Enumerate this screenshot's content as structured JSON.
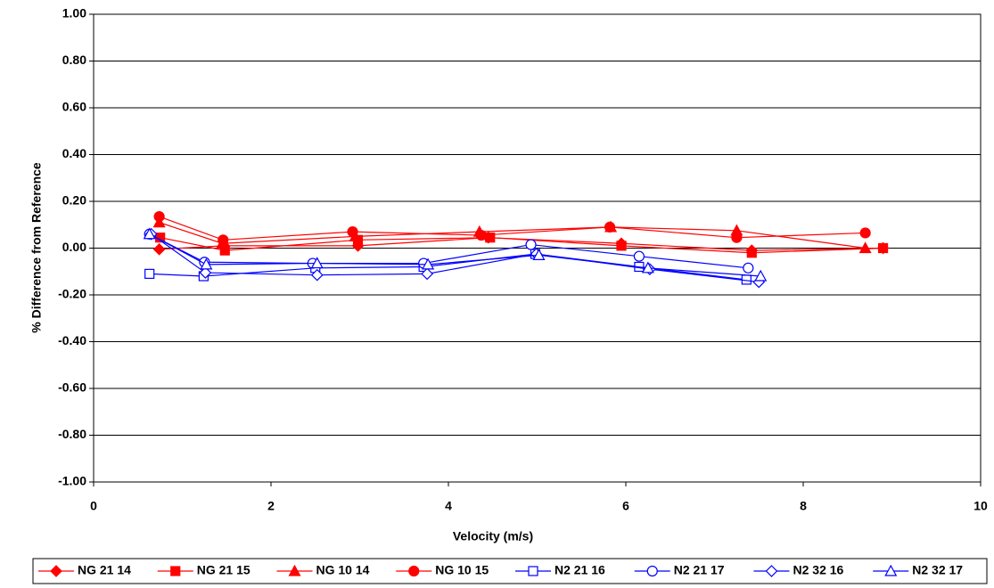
{
  "chart_data": {
    "type": "line",
    "xlabel": "Velocity (m/s)",
    "ylabel": "% Difference from Reference",
    "xlim": [
      0,
      10
    ],
    "xticks": [
      0,
      2,
      4,
      6,
      8,
      10
    ],
    "ylim": [
      -1,
      1
    ],
    "yticks": [
      {
        "value": -1,
        "label": "-1.00"
      },
      {
        "value": -0.8,
        "label": "-0.80"
      },
      {
        "value": -0.6,
        "label": "-0.60"
      },
      {
        "value": -0.4,
        "label": "-0.40"
      },
      {
        "value": -0.2,
        "label": "-0.20"
      },
      {
        "value": 0,
        "label": "0.00"
      },
      {
        "value": 0.2,
        "label": "0.20"
      },
      {
        "value": 0.4,
        "label": "0.40"
      },
      {
        "value": 0.6,
        "label": "0.60"
      },
      {
        "value": 0.8,
        "label": "0.80"
      },
      {
        "value": 1,
        "label": "1.00"
      }
    ],
    "grid": true,
    "legend": "bottom",
    "series": [
      {
        "name": "NG 21 14",
        "color": "#ff0000",
        "marker": "diamond",
        "filled": true,
        "x": [
          0.74,
          1.47,
          2.98,
          4.45,
          5.95,
          7.42,
          8.9
        ],
        "values": [
          -0.005,
          0.01,
          0.01,
          0.045,
          0.02,
          -0.01,
          0.0
        ]
      },
      {
        "name": "NG 21 15",
        "color": "#ff0000",
        "marker": "square",
        "filled": true,
        "x": [
          0.75,
          1.48,
          2.98,
          4.47,
          5.95,
          7.42,
          8.9
        ],
        "values": [
          0.045,
          -0.01,
          0.035,
          0.045,
          0.01,
          -0.02,
          0.0
        ]
      },
      {
        "name": "NG 10 14",
        "color": "#ff0000",
        "marker": "triangle",
        "filled": true,
        "x": [
          0.74,
          1.45,
          2.95,
          4.35,
          5.83,
          7.25,
          8.7
        ],
        "values": [
          0.11,
          0.02,
          0.05,
          0.07,
          0.09,
          0.075,
          0.0
        ]
      },
      {
        "name": "NG 10 15",
        "color": "#ff0000",
        "marker": "circle",
        "filled": true,
        "x": [
          0.74,
          1.46,
          2.92,
          4.37,
          5.82,
          7.25,
          8.7
        ],
        "values": [
          0.135,
          0.035,
          0.07,
          0.055,
          0.09,
          0.045,
          0.065
        ]
      },
      {
        "name": "N2 21 16",
        "color": "#0000ff",
        "marker": "square",
        "filled": false,
        "x": [
          0.63,
          1.24,
          2.5,
          3.72,
          4.98,
          6.15,
          7.36
        ],
        "values": [
          -0.11,
          -0.12,
          -0.085,
          -0.08,
          -0.025,
          -0.08,
          -0.135
        ]
      },
      {
        "name": "N2 21 17",
        "color": "#0000ff",
        "marker": "circle",
        "filled": false,
        "x": [
          0.63,
          1.25,
          2.47,
          3.72,
          4.93,
          6.15,
          7.38
        ],
        "values": [
          0.06,
          -0.06,
          -0.065,
          -0.065,
          0.015,
          -0.035,
          -0.085
        ]
      },
      {
        "name": "N2 32 16",
        "color": "#0000ff",
        "marker": "diamond",
        "filled": false,
        "x": [
          0.65,
          1.26,
          2.52,
          3.76,
          4.99,
          6.27,
          7.5
        ],
        "values": [
          0.06,
          -0.105,
          -0.115,
          -0.11,
          -0.025,
          -0.09,
          -0.145
        ]
      },
      {
        "name": "N2 32 17",
        "color": "#0000ff",
        "marker": "triangle",
        "filled": false,
        "x": [
          0.63,
          1.27,
          2.52,
          3.77,
          5.02,
          6.25,
          7.52
        ],
        "values": [
          0.06,
          -0.07,
          -0.065,
          -0.07,
          -0.03,
          -0.085,
          -0.12
        ]
      }
    ]
  }
}
